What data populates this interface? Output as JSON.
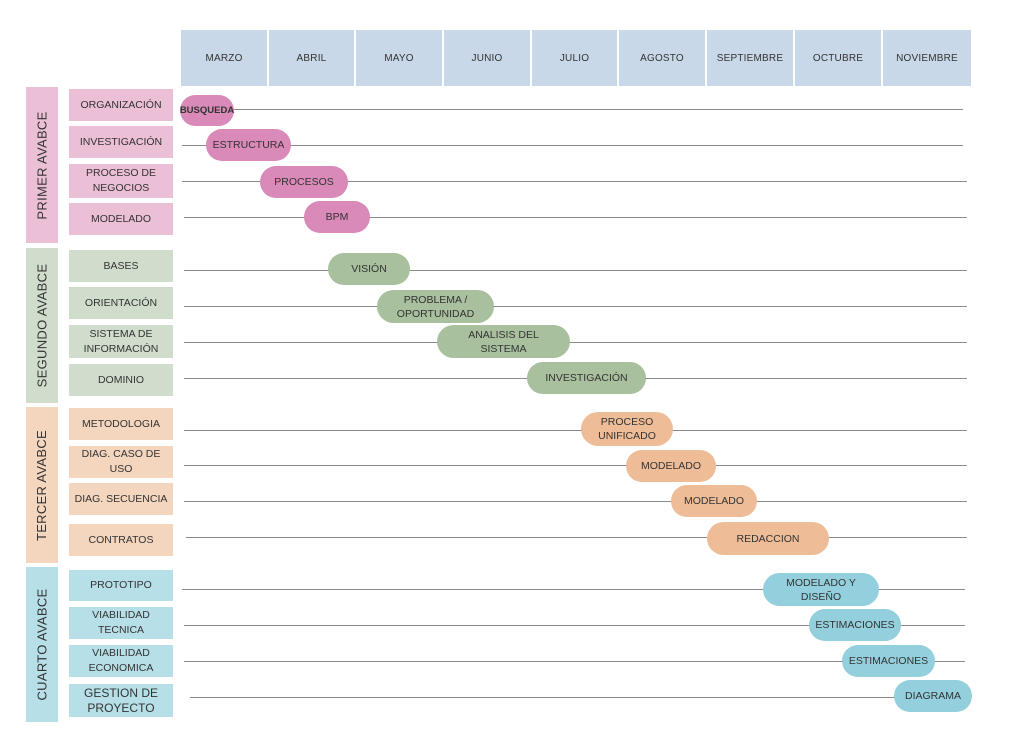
{
  "months": [
    "MARZO",
    "ABRIL",
    "MAYO",
    "JUNIO",
    "JULIO",
    "AGOSTO",
    "SEPTIEMBRE",
    "OCTUBRE",
    "NOVIEMBRE"
  ],
  "phases": [
    {
      "label": "PRIMER AVABCE",
      "color": "#ebbfd6"
    },
    {
      "label": "SEGUNDO AVABCE",
      "color": "#d0dccc"
    },
    {
      "label": "TERCER AVABCE",
      "color": "#f4d5bd"
    },
    {
      "label": "CUARTO AVABCE",
      "color": "#b7dfe8"
    }
  ],
  "rows": [
    {
      "task": "ORGANIZACIÓN",
      "bar": "BUSQUEDA",
      "bar_color": "#d98ab8"
    },
    {
      "task": "INVESTIGACIÓN",
      "bar": "ESTRUCTURA",
      "bar_color": "#d98ab8"
    },
    {
      "task": "PROCESO DE\nNEGOCIOS",
      "bar": "PROCESOS",
      "bar_color": "#d98ab8"
    },
    {
      "task": "MODELADO",
      "bar": "BPM",
      "bar_color": "#d98ab8"
    },
    {
      "task": "BASES",
      "bar": "VISIÓN",
      "bar_color": "#a8c09d"
    },
    {
      "task": "ORIENTACIÓN",
      "bar": "PROBLEMA /\nOPORTUNIDAD",
      "bar_color": "#a8c09d"
    },
    {
      "task": "SISTEMA DE\nINFORMACIÓN",
      "bar": "ANALISIS DEL\nSISTEMA",
      "bar_color": "#a8c09d"
    },
    {
      "task": "DOMINIO",
      "bar": "INVESTIGACIÓN",
      "bar_color": "#a8c09d"
    },
    {
      "task": "METODOLOGIA",
      "bar": "PROCESO\nUNIFICADO",
      "bar_color": "#eebc97"
    },
    {
      "task": "DIAG. CASO DE USO",
      "bar": "MODELADO",
      "bar_color": "#eebc97"
    },
    {
      "task": "DIAG. SECUENCIA",
      "bar": "MODELADO",
      "bar_color": "#eebc97"
    },
    {
      "task": "CONTRATOS",
      "bar": "REDACCION",
      "bar_color": "#eebc97"
    },
    {
      "task": "PROTOTIPO",
      "bar": "MODELADO Y\nDISEÑO",
      "bar_color": "#93cfdc"
    },
    {
      "task": "VIABILIDAD\nTECNICA",
      "bar": "ESTIMACIONES",
      "bar_color": "#93cfdc"
    },
    {
      "task": "VIABILIDAD\nECONOMICA",
      "bar": "ESTIMACIONES",
      "bar_color": "#93cfdc"
    },
    {
      "task": "GESTION DE\nPROYECTO",
      "bar": "DIAGRAMA",
      "bar_color": "#93cfdc"
    }
  ]
}
